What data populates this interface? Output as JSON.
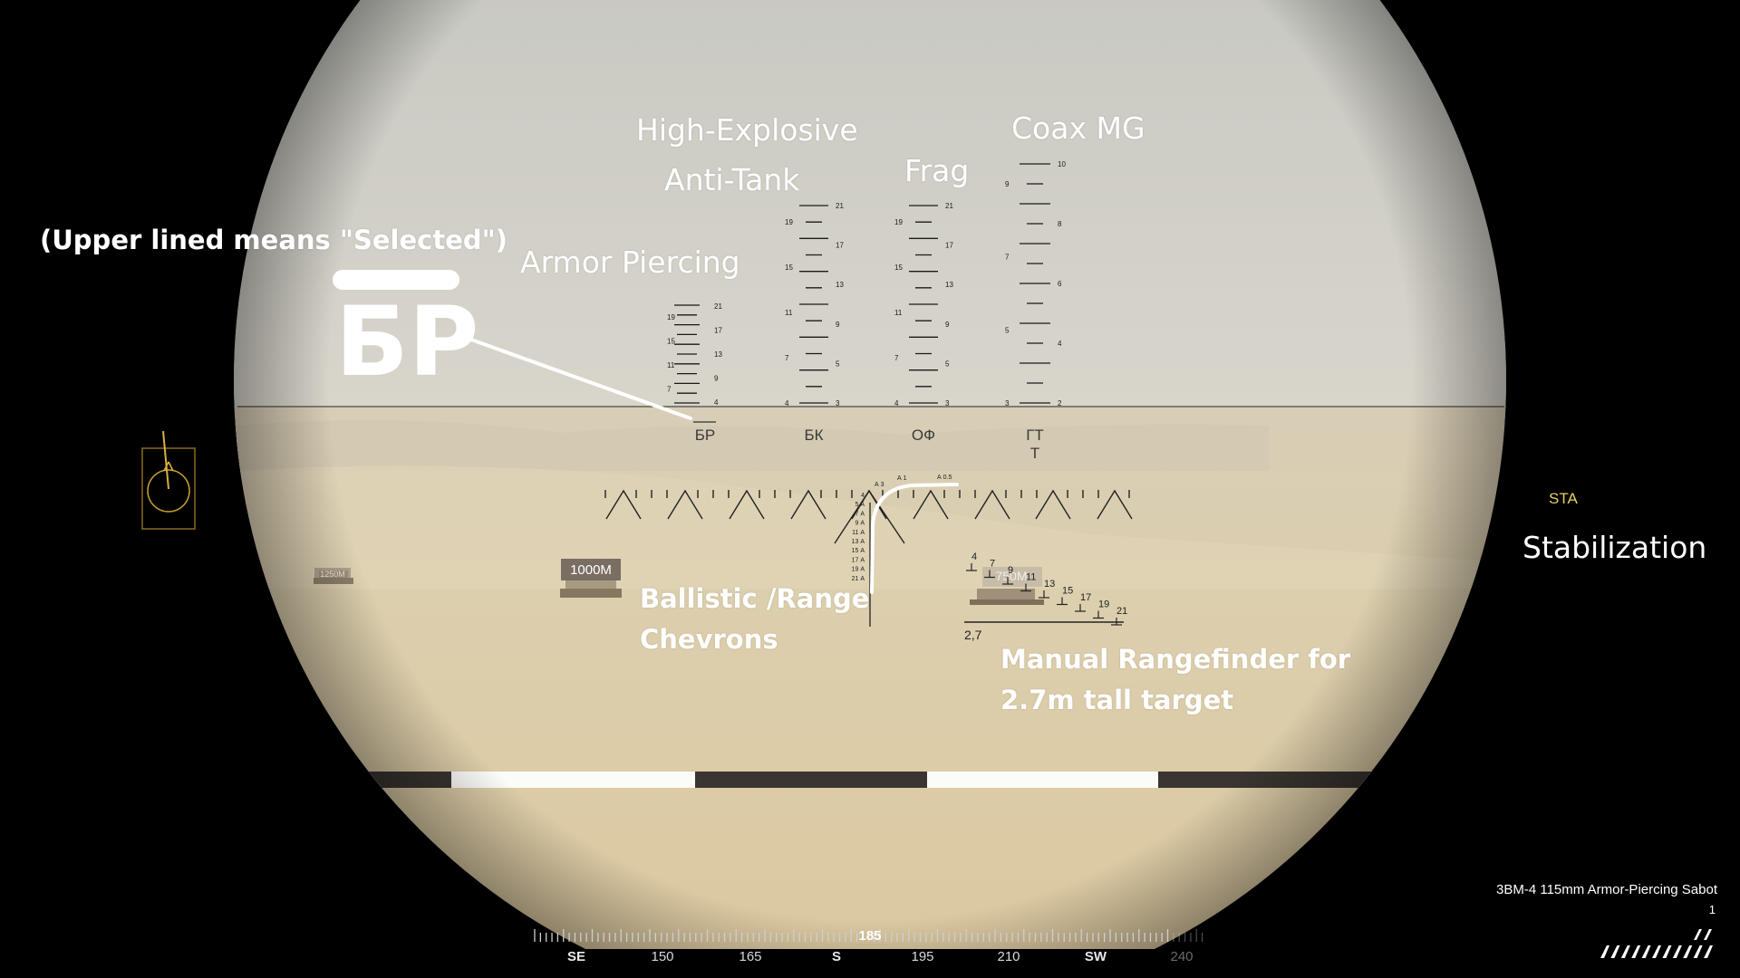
{
  "annotations": {
    "heat": [
      "High-Explosive",
      "Anti-Tank"
    ],
    "coax": "Coax MG",
    "frag": "Frag",
    "selected_note": "(Upper lined means \"Selected\")",
    "armor_piercing": "Armor Piercing",
    "selected_example": "БР",
    "ballistic": [
      "Ballistic /Range",
      "Chevrons"
    ],
    "stabilization": "Stabilization",
    "rangefinder": [
      "Manual Rangefinder for",
      "2.7m tall target"
    ]
  },
  "reticle": {
    "scale_labels": {
      "br": [
        "21",
        "19",
        "17",
        "15",
        "13",
        "11",
        "9",
        "7",
        "4"
      ],
      "bk_left": [
        "19",
        "15",
        "11",
        "7",
        "4"
      ],
      "bk_right": [
        "21",
        "17",
        "13",
        "9",
        "5",
        "3"
      ],
      "of_left": [
        "19",
        "15",
        "11",
        "7",
        "4"
      ],
      "of_right": [
        "21",
        "17",
        "13",
        "9",
        "5",
        "3"
      ],
      "gt_left": [
        "9",
        "7",
        "5",
        "3"
      ],
      "gt_right": [
        "10",
        "8",
        "6",
        "4",
        "2"
      ]
    },
    "ammo_labels": [
      "БР",
      "БК",
      "ОФ",
      "ГТ"
    ],
    "coax_sub": "Т",
    "chevron_labels": [
      "А 3",
      "А 1",
      "А 0.5"
    ],
    "ballistic_column": [
      "4",
      "5 А",
      "7 А",
      "9 А",
      "11 А",
      "13 А",
      "15 А",
      "17 А",
      "19 А",
      "21 А"
    ],
    "rangefinder_labels": [
      "4",
      "7",
      "9",
      "11",
      "13",
      "15",
      "17",
      "19",
      "21"
    ],
    "rangefinder_height": "2,7"
  },
  "world": {
    "sign_far": "1250M",
    "sign_mid": "1000M",
    "sign_near": "750M"
  },
  "hud": {
    "stabilization_indicator": "STA",
    "ammo_name": "3BM-4 115mm Armor-Piercing Sabot",
    "ammo_count": "1",
    "heading": "185",
    "compass_labels": [
      "SE",
      "150",
      "165",
      "S",
      "195",
      "210",
      "SW",
      "240"
    ],
    "colors": {
      "sta": "#e8d060",
      "turret_indicator": "#c8a030"
    },
    "icons": [
      "turret-direction-icon",
      "ammo-rack-icon"
    ]
  }
}
